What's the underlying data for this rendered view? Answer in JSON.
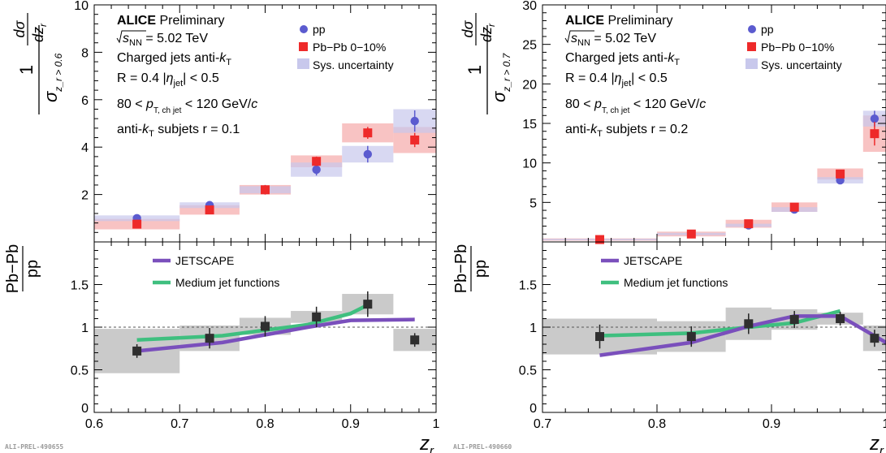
{
  "chart_data": [
    {
      "type": "scatter",
      "panel_id": "ALI-PREL-490655",
      "texts": {
        "experiment": "ALICE",
        "status": "Preliminary",
        "energy": "= 5.02 TeV",
        "jets": "Charged jets   anti-",
        "radius": "R = 0.4   |",
        "eta_cut": "| < 0.5",
        "pt_low": "80 < ",
        "pt_high": " < 120 GeV/",
        "subjets": "anti-",
        "subjets_r": " subjets   r = 0.1"
      },
      "legend_top": [
        "pp",
        "Pb−Pb 0−10%",
        "Sys. uncertainty"
      ],
      "legend_bottom": [
        "JETSCAPE",
        "Medium jet functions"
      ],
      "ylabel_top_sub": "z_r > 0.6",
      "ylabel_bottom": [
        "Pb−Pb",
        "pp"
      ],
      "xlabel": "z_r",
      "xlim": [
        0.6,
        1.0
      ],
      "ylim_top": [
        0,
        10
      ],
      "ylim_bottom": [
        0,
        2
      ],
      "xticks": [
        "0.6",
        "0.7",
        "0.8",
        "0.9",
        "1"
      ],
      "yticks_top": [
        "2",
        "4",
        "6",
        "8",
        "10"
      ],
      "yticks_bottom": [
        "0",
        "0.5",
        "1",
        "1.5"
      ],
      "bins": [
        [
          0.6,
          0.7
        ],
        [
          0.7,
          0.77
        ],
        [
          0.77,
          0.83
        ],
        [
          0.83,
          0.89
        ],
        [
          0.89,
          0.95
        ],
        [
          0.95,
          1.0
        ]
      ],
      "pp": {
        "x": [
          0.65,
          0.735,
          0.8,
          0.86,
          0.92,
          0.975
        ],
        "y": [
          1.0,
          1.55,
          2.2,
          3.05,
          3.7,
          5.1
        ],
        "err": [
          0.1,
          0.15,
          0.2,
          0.25,
          0.35,
          0.45
        ],
        "sys": [
          0.12,
          0.12,
          0.15,
          0.3,
          0.35,
          0.5
        ]
      },
      "pbpb": {
        "x": [
          0.65,
          0.735,
          0.8,
          0.86,
          0.92,
          0.975
        ],
        "y": [
          0.75,
          1.35,
          2.2,
          3.4,
          4.6,
          4.3
        ],
        "err": [
          0.1,
          0.15,
          0.2,
          0.2,
          0.25,
          0.3
        ],
        "sys": [
          0.22,
          0.2,
          0.2,
          0.25,
          0.4,
          0.55
        ]
      },
      "ratio": {
        "x": [
          0.65,
          0.735,
          0.8,
          0.86,
          0.92,
          0.975
        ],
        "y": [
          0.72,
          0.87,
          1.01,
          1.12,
          1.27,
          0.85
        ],
        "err": [
          0.08,
          0.12,
          0.12,
          0.12,
          0.15,
          0.08
        ],
        "sys": [
          0.26,
          0.15,
          0.1,
          0.07,
          0.12,
          0.13
        ]
      },
      "jetscape": {
        "x": [
          0.65,
          0.75,
          0.85,
          0.9,
          0.975
        ],
        "y": [
          0.72,
          0.82,
          1.0,
          1.08,
          1.09
        ]
      },
      "mjf": {
        "x": [
          0.65,
          0.75,
          0.85,
          0.9,
          0.92
        ],
        "y": [
          0.85,
          0.9,
          1.03,
          1.16,
          1.26
        ]
      }
    },
    {
      "type": "scatter",
      "panel_id": "ALI-PREL-490660",
      "texts": {
        "experiment": "ALICE",
        "status": "Preliminary",
        "energy": "= 5.02 TeV",
        "jets": "Charged jets   anti-",
        "radius": "R = 0.4   |",
        "eta_cut": "| < 0.5",
        "pt_low": "80 < ",
        "pt_high": " < 120 GeV/",
        "subjets": "anti-",
        "subjets_r": " subjets   r = 0.2"
      },
      "legend_top": [
        "pp",
        "Pb−Pb 0−10%",
        "Sys. uncertainty"
      ],
      "legend_bottom": [
        "JETSCAPE",
        "Medium jet functions"
      ],
      "ylabel_top_sub": "z_r > 0.7",
      "ylabel_bottom": [
        "Pb−Pb",
        "pp"
      ],
      "xlabel": "z_r",
      "xlim": [
        0.7,
        1.0
      ],
      "ylim_top": [
        0,
        30
      ],
      "ylim_bottom": [
        0,
        2
      ],
      "xticks": [
        "0.7",
        "0.8",
        "0.9",
        "1"
      ],
      "yticks_top": [
        "5",
        "10",
        "15",
        "20",
        "25",
        "30"
      ],
      "yticks_bottom": [
        "0",
        "0.5",
        "1",
        "1.5"
      ],
      "bins": [
        [
          0.7,
          0.8
        ],
        [
          0.8,
          0.86
        ],
        [
          0.86,
          0.9
        ],
        [
          0.9,
          0.94
        ],
        [
          0.94,
          0.98
        ],
        [
          0.98,
          1.0
        ]
      ],
      "pp": {
        "x": [
          0.75,
          0.83,
          0.88,
          0.92,
          0.96,
          0.99
        ],
        "y": [
          0.3,
          1.0,
          2.1,
          4.1,
          7.8,
          15.6
        ],
        "err": [
          0.05,
          0.1,
          0.2,
          0.3,
          0.4,
          1.0
        ],
        "sys": [
          0.1,
          0.15,
          0.2,
          0.3,
          0.4,
          1.0
        ]
      },
      "pbpb": {
        "x": [
          0.75,
          0.83,
          0.88,
          0.92,
          0.96,
          0.99
        ],
        "y": [
          0.3,
          1.0,
          2.3,
          4.4,
          8.6,
          13.7
        ],
        "err": [
          0.05,
          0.1,
          0.2,
          0.3,
          0.5,
          1.5
        ],
        "sys": [
          0.15,
          0.3,
          0.5,
          0.6,
          0.7,
          2.3
        ]
      },
      "ratio": {
        "x": [
          0.75,
          0.83,
          0.88,
          0.92,
          0.96,
          0.99
        ],
        "y": [
          0.89,
          0.89,
          1.04,
          1.09,
          1.1,
          0.87
        ],
        "err": [
          0.14,
          0.12,
          0.12,
          0.1,
          0.08,
          0.1
        ],
        "sys": [
          0.21,
          0.18,
          0.19,
          0.12,
          0.07,
          0.15
        ]
      },
      "jetscape": {
        "x": [
          0.75,
          0.83,
          0.88,
          0.92,
          0.96,
          1.0
        ],
        "y": [
          0.67,
          0.82,
          1.01,
          1.13,
          1.13,
          0.82
        ]
      },
      "mjf": {
        "x": [
          0.75,
          0.83,
          0.88,
          0.92,
          0.96
        ],
        "y": [
          0.9,
          0.93,
          1.0,
          1.05,
          1.19
        ]
      }
    }
  ],
  "colors": {
    "pp": "#5b5bcf",
    "pbpb": "#ee2a2a",
    "pp_sys": "#c8c8ec",
    "pbpb_sys": "#f7b8b8",
    "ratio_sys": "#c4c4c4",
    "ratio_marker": "#2f2f2f",
    "jetscape": "#7a4fbc",
    "mjf": "#3fbf7f"
  }
}
